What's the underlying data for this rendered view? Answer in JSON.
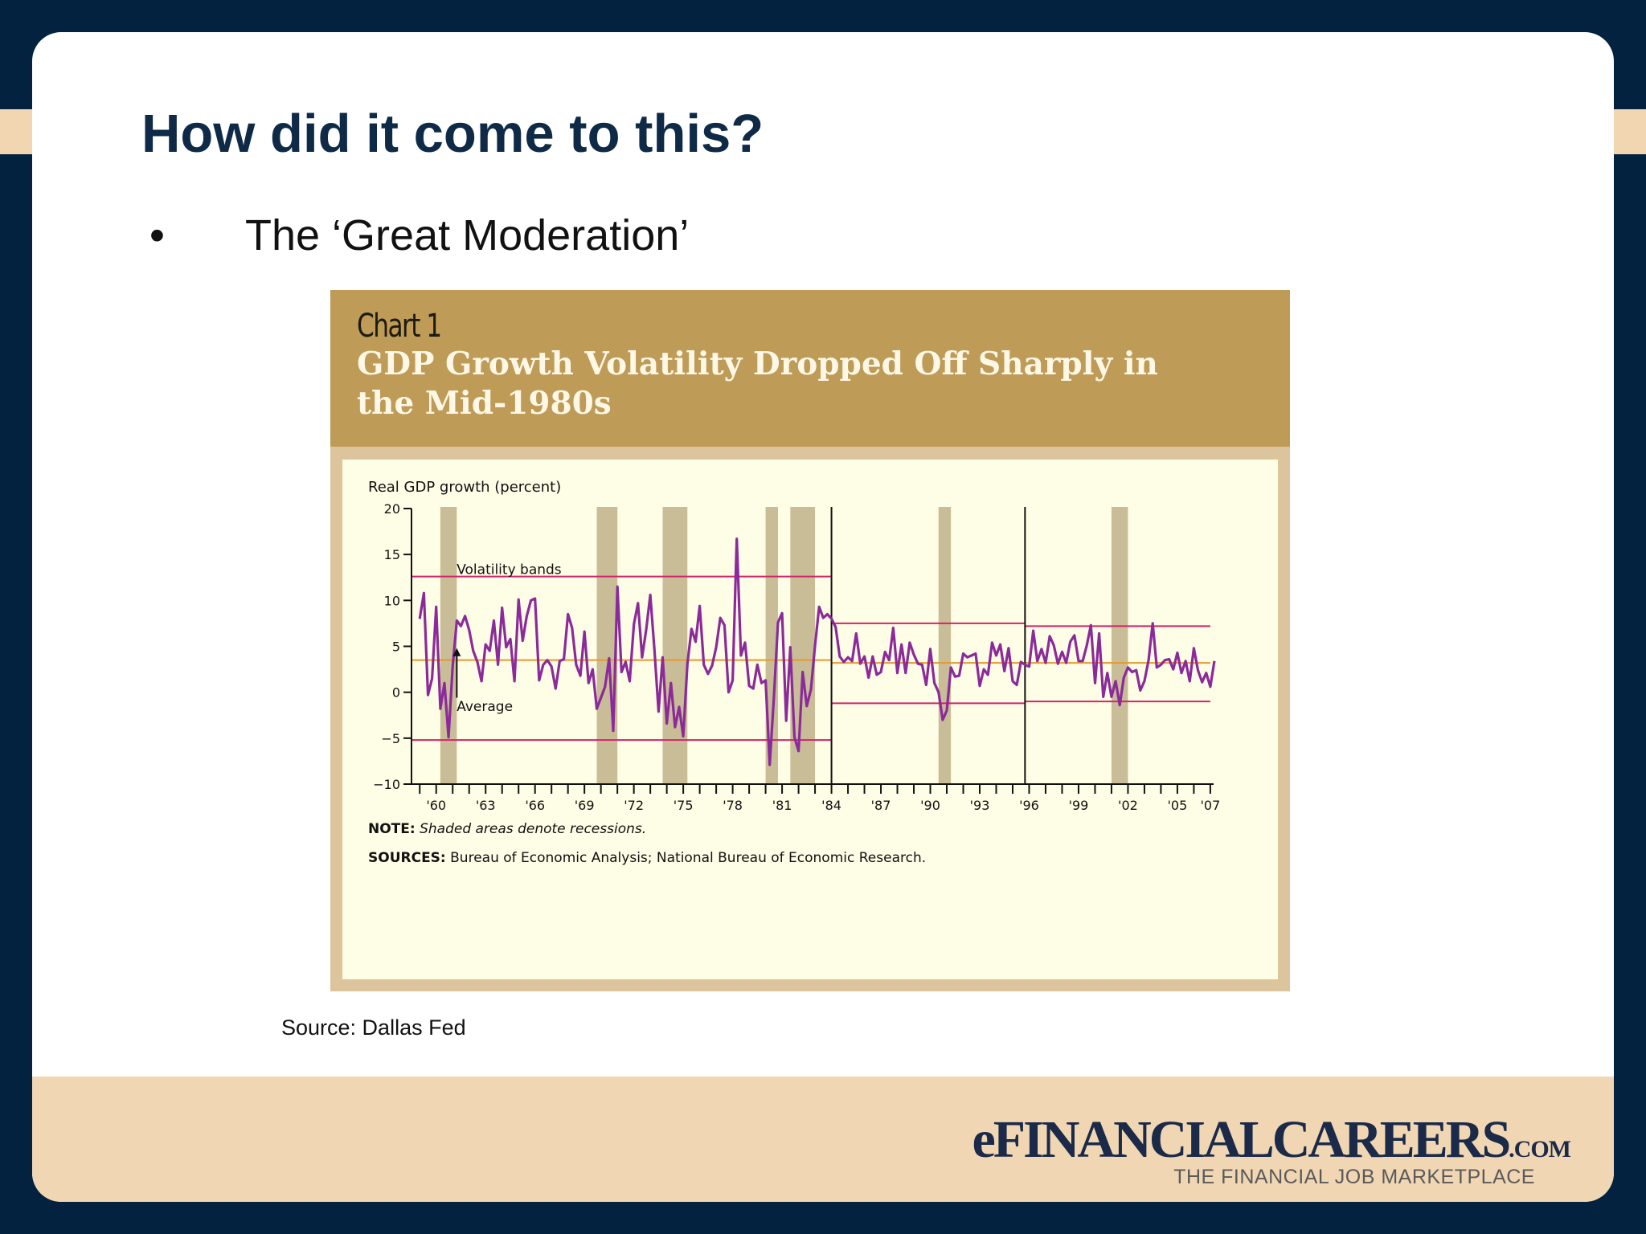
{
  "slide": {
    "title": "How did it come to this?",
    "bullet": "The ‘Great Moderation’",
    "source": "Source: Dallas Fed"
  },
  "logo": {
    "main": "eFINANCIALCAREERS",
    "suffix": ".COM",
    "tagline": "THE FINANCIAL JOB MARKETPLACE"
  },
  "colors": {
    "navy": "#03223f",
    "title": "#0e2a47",
    "chart_header": "#bf9b58",
    "chart_frame": "#dcc59d",
    "chart_bg": "#fefde6",
    "series": "#8b2a9a",
    "band": "#d1246b",
    "average": "#e49a2e",
    "recession": "#c9bd97"
  },
  "chart_data": {
    "type": "line",
    "label": "Chart 1",
    "title": "GDP Growth Volatility Dropped Off Sharply in the Mid-1980s",
    "ylabel": "Real GDP growth (percent)",
    "ylim": [
      -10,
      20
    ],
    "yticks": [
      20,
      15,
      10,
      5,
      0,
      -5,
      -10
    ],
    "xlim": [
      1958.5,
      2007.2
    ],
    "xtick_labels": [
      {
        "year": 1960,
        "label": "'60"
      },
      {
        "year": 1963,
        "label": "'63"
      },
      {
        "year": 1966,
        "label": "'66"
      },
      {
        "year": 1969,
        "label": "'69"
      },
      {
        "year": 1972,
        "label": "'72"
      },
      {
        "year": 1975,
        "label": "'75"
      },
      {
        "year": 1978,
        "label": "'78"
      },
      {
        "year": 1981,
        "label": "'81"
      },
      {
        "year": 1984,
        "label": "'84"
      },
      {
        "year": 1987,
        "label": "'87"
      },
      {
        "year": 1990,
        "label": "'90"
      },
      {
        "year": 1993,
        "label": "'93"
      },
      {
        "year": 1996,
        "label": "'96"
      },
      {
        "year": 1999,
        "label": "'99"
      },
      {
        "year": 2002,
        "label": "'02"
      },
      {
        "year": 2005,
        "label": "'05"
      },
      {
        "year": 2007,
        "label": "'07"
      }
    ],
    "recessions": [
      [
        1960.25,
        1961.25
      ],
      [
        1969.75,
        1971.0
      ],
      [
        1973.75,
        1975.25
      ],
      [
        1980.0,
        1980.75
      ],
      [
        1981.5,
        1983.0
      ],
      [
        1990.5,
        1991.25
      ],
      [
        2001.0,
        2002.0
      ]
    ],
    "dividers": [
      1984.0,
      1995.75
    ],
    "bands": [
      {
        "x": [
          1958.5,
          1984.0
        ],
        "upper": 12.6,
        "lower": -5.2,
        "average": 3.5
      },
      {
        "x": [
          1984.0,
          1995.75
        ],
        "upper": 7.5,
        "lower": -1.2,
        "average": 3.2
      },
      {
        "x": [
          1995.75,
          2007.0
        ],
        "upper": 7.2,
        "lower": -1.0,
        "average": 3.2
      }
    ],
    "annotations": [
      {
        "text": "Volatility bands",
        "x": 1961.0,
        "y": 13.4
      },
      {
        "text": "Average",
        "x": 1961.0,
        "y": -1.5
      }
    ],
    "series": [
      {
        "values": [
          [
            1959.0,
            8.0
          ],
          [
            1959.25,
            10.8
          ],
          [
            1959.5,
            -0.3
          ],
          [
            1959.75,
            1.5
          ],
          [
            1960.0,
            9.3
          ],
          [
            1960.25,
            -1.8
          ],
          [
            1960.5,
            1.0
          ],
          [
            1960.75,
            -4.9
          ],
          [
            1961.0,
            2.8
          ],
          [
            1961.25,
            7.8
          ],
          [
            1961.5,
            7.2
          ],
          [
            1961.75,
            8.3
          ],
          [
            1962.0,
            6.8
          ],
          [
            1962.25,
            4.5
          ],
          [
            1962.5,
            3.3
          ],
          [
            1962.75,
            1.2
          ],
          [
            1963.0,
            5.2
          ],
          [
            1963.25,
            4.5
          ],
          [
            1963.5,
            7.8
          ],
          [
            1963.75,
            3.0
          ],
          [
            1964.0,
            9.2
          ],
          [
            1964.25,
            4.9
          ],
          [
            1964.5,
            5.8
          ],
          [
            1964.75,
            1.2
          ],
          [
            1965.0,
            10.1
          ],
          [
            1965.25,
            5.6
          ],
          [
            1965.5,
            8.3
          ],
          [
            1965.75,
            10.0
          ],
          [
            1966.0,
            10.2
          ],
          [
            1966.25,
            1.3
          ],
          [
            1966.5,
            3.0
          ],
          [
            1966.75,
            3.5
          ],
          [
            1967.0,
            2.8
          ],
          [
            1967.25,
            0.4
          ],
          [
            1967.5,
            3.4
          ],
          [
            1967.75,
            3.6
          ],
          [
            1968.0,
            8.5
          ],
          [
            1968.25,
            7.0
          ],
          [
            1968.5,
            3.0
          ],
          [
            1968.75,
            1.8
          ],
          [
            1969.0,
            6.6
          ],
          [
            1969.25,
            1.0
          ],
          [
            1969.5,
            2.5
          ],
          [
            1969.75,
            -1.8
          ],
          [
            1970.0,
            -0.6
          ],
          [
            1970.25,
            0.6
          ],
          [
            1970.5,
            3.7
          ],
          [
            1970.75,
            -4.2
          ],
          [
            1971.0,
            11.5
          ],
          [
            1971.25,
            2.2
          ],
          [
            1971.5,
            3.3
          ],
          [
            1971.75,
            1.2
          ],
          [
            1972.0,
            7.4
          ],
          [
            1972.25,
            9.7
          ],
          [
            1972.5,
            3.8
          ],
          [
            1972.75,
            6.8
          ],
          [
            1973.0,
            10.6
          ],
          [
            1973.25,
            4.6
          ],
          [
            1973.5,
            -2.1
          ],
          [
            1973.75,
            3.8
          ],
          [
            1974.0,
            -3.4
          ],
          [
            1974.25,
            1.0
          ],
          [
            1974.5,
            -3.8
          ],
          [
            1974.75,
            -1.6
          ],
          [
            1975.0,
            -4.8
          ],
          [
            1975.25,
            3.1
          ],
          [
            1975.5,
            6.9
          ],
          [
            1975.75,
            5.5
          ],
          [
            1976.0,
            9.4
          ],
          [
            1976.25,
            3.0
          ],
          [
            1976.5,
            2.0
          ],
          [
            1976.75,
            2.9
          ],
          [
            1977.0,
            4.9
          ],
          [
            1977.25,
            8.1
          ],
          [
            1977.5,
            7.3
          ],
          [
            1977.75,
            0.0
          ],
          [
            1978.0,
            1.3
          ],
          [
            1978.25,
            16.7
          ],
          [
            1978.5,
            4.0
          ],
          [
            1978.75,
            5.4
          ],
          [
            1979.0,
            0.7
          ],
          [
            1979.25,
            0.4
          ],
          [
            1979.5,
            3.0
          ],
          [
            1979.75,
            1.0
          ],
          [
            1980.0,
            1.3
          ],
          [
            1980.25,
            -7.9
          ],
          [
            1980.5,
            -0.7
          ],
          [
            1980.75,
            7.6
          ],
          [
            1981.0,
            8.6
          ],
          [
            1981.25,
            -3.1
          ],
          [
            1981.5,
            4.9
          ],
          [
            1981.75,
            -4.9
          ],
          [
            1982.0,
            -6.4
          ],
          [
            1982.25,
            2.2
          ],
          [
            1982.5,
            -1.5
          ],
          [
            1982.75,
            0.3
          ],
          [
            1983.0,
            5.1
          ],
          [
            1983.25,
            9.3
          ],
          [
            1983.5,
            8.1
          ],
          [
            1983.75,
            8.5
          ],
          [
            1984.0,
            8.0
          ],
          [
            1984.25,
            7.1
          ],
          [
            1984.5,
            3.9
          ],
          [
            1984.75,
            3.3
          ],
          [
            1985.0,
            3.8
          ],
          [
            1985.25,
            3.4
          ],
          [
            1985.5,
            6.4
          ],
          [
            1985.75,
            3.1
          ],
          [
            1986.0,
            3.9
          ],
          [
            1986.25,
            1.6
          ],
          [
            1986.5,
            3.9
          ],
          [
            1986.75,
            1.9
          ],
          [
            1987.0,
            2.2
          ],
          [
            1987.25,
            4.4
          ],
          [
            1987.5,
            3.5
          ],
          [
            1987.75,
            7.0
          ],
          [
            1988.0,
            2.1
          ],
          [
            1988.25,
            5.2
          ],
          [
            1988.5,
            2.1
          ],
          [
            1988.75,
            5.4
          ],
          [
            1989.0,
            4.1
          ],
          [
            1989.25,
            3.1
          ],
          [
            1989.5,
            3.0
          ],
          [
            1989.75,
            0.8
          ],
          [
            1990.0,
            4.7
          ],
          [
            1990.25,
            1.0
          ],
          [
            1990.5,
            0.0
          ],
          [
            1990.75,
            -3.0
          ],
          [
            1991.0,
            -2.0
          ],
          [
            1991.25,
            2.7
          ],
          [
            1991.5,
            1.7
          ],
          [
            1991.75,
            1.8
          ],
          [
            1992.0,
            4.2
          ],
          [
            1992.25,
            3.8
          ],
          [
            1992.5,
            4.0
          ],
          [
            1992.75,
            4.2
          ],
          [
            1993.0,
            0.7
          ],
          [
            1993.25,
            2.5
          ],
          [
            1993.5,
            1.9
          ],
          [
            1993.75,
            5.4
          ],
          [
            1994.0,
            4.0
          ],
          [
            1994.25,
            5.2
          ],
          [
            1994.5,
            2.3
          ],
          [
            1994.75,
            4.8
          ],
          [
            1995.0,
            1.2
          ],
          [
            1995.25,
            0.8
          ],
          [
            1995.5,
            3.3
          ],
          [
            1995.75,
            3.0
          ],
          [
            1996.0,
            2.8
          ],
          [
            1996.25,
            6.7
          ],
          [
            1996.5,
            3.4
          ],
          [
            1996.75,
            4.7
          ],
          [
            1997.0,
            3.2
          ],
          [
            1997.25,
            6.1
          ],
          [
            1997.5,
            5.1
          ],
          [
            1997.75,
            3.1
          ],
          [
            1998.0,
            4.4
          ],
          [
            1998.25,
            3.2
          ],
          [
            1998.5,
            5.5
          ],
          [
            1998.75,
            6.2
          ],
          [
            1999.0,
            3.4
          ],
          [
            1999.25,
            3.4
          ],
          [
            1999.5,
            5.1
          ],
          [
            1999.75,
            7.3
          ],
          [
            2000.0,
            1.0
          ],
          [
            2000.25,
            6.4
          ],
          [
            2000.5,
            -0.5
          ],
          [
            2000.75,
            2.1
          ],
          [
            2001.0,
            -0.5
          ],
          [
            2001.25,
            1.2
          ],
          [
            2001.5,
            -1.4
          ],
          [
            2001.75,
            1.6
          ],
          [
            2002.0,
            2.7
          ],
          [
            2002.25,
            2.2
          ],
          [
            2002.5,
            2.4
          ],
          [
            2002.75,
            0.2
          ],
          [
            2003.0,
            1.2
          ],
          [
            2003.25,
            3.5
          ],
          [
            2003.5,
            7.5
          ],
          [
            2003.75,
            2.7
          ],
          [
            2004.0,
            3.0
          ],
          [
            2004.25,
            3.5
          ],
          [
            2004.5,
            3.6
          ],
          [
            2004.75,
            2.5
          ],
          [
            2005.0,
            4.3
          ],
          [
            2005.25,
            2.1
          ],
          [
            2005.5,
            3.4
          ],
          [
            2005.75,
            1.2
          ],
          [
            2006.0,
            4.8
          ],
          [
            2006.25,
            2.4
          ],
          [
            2006.5,
            1.1
          ],
          [
            2006.75,
            2.1
          ],
          [
            2007.0,
            0.6
          ],
          [
            2007.25,
            3.4
          ]
        ]
      }
    ],
    "notes": [
      {
        "label": "NOTE:",
        "text": " Shaded areas denote recessions."
      },
      {
        "label": "SOURCES:",
        "text": " Bureau of Economic Analysis; National Bureau of Economic Research."
      }
    ]
  }
}
